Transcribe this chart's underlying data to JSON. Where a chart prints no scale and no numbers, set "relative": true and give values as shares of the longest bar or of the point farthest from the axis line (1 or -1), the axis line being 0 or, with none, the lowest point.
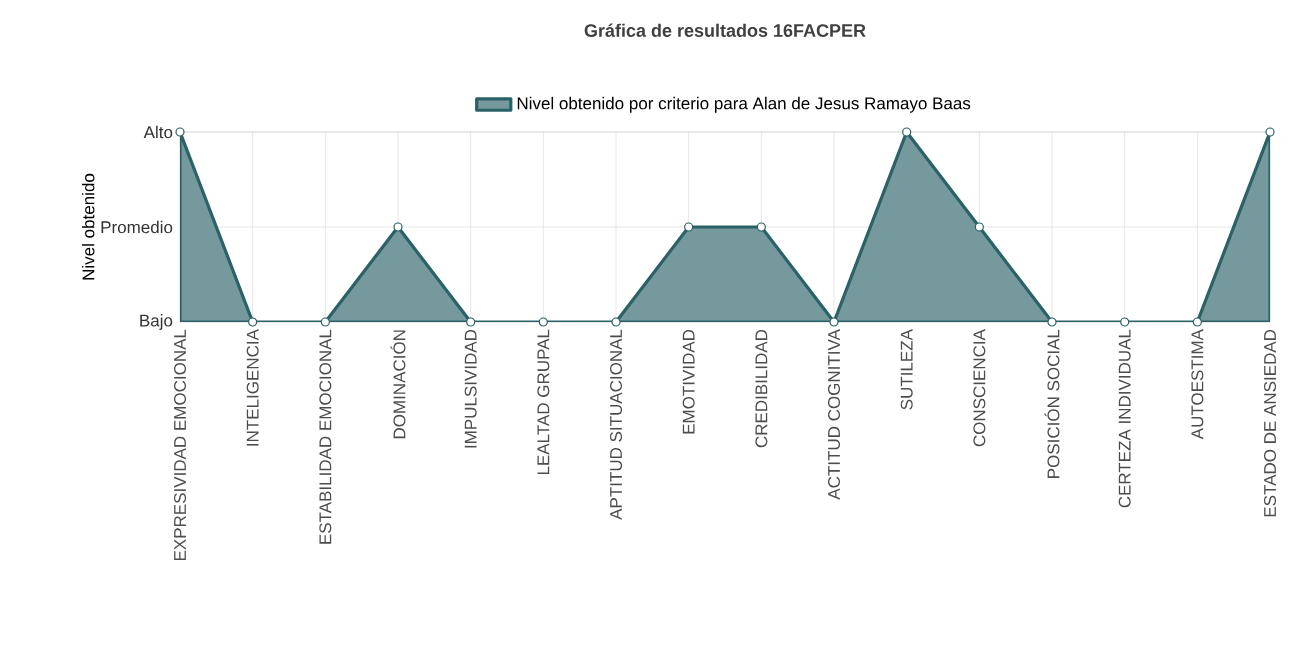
{
  "chart_data": {
    "type": "area",
    "title": "Gráfica de resultados 16FACPER",
    "ylabel": "Nivel obtenido",
    "categories": [
      "EXPRESIVIDAD EMOCIONAL",
      "INTELIGENCIA",
      "ESTABILIDAD EMOCIONAL",
      "DOMINACIÓN",
      "IMPULSIVIDAD",
      "LEALTAD GRUPAL",
      "APTITUD SITUACIONAL",
      "EMOTIVIDAD",
      "CREDIBILIDAD",
      "ACTITUD COGNITIVA",
      "SUTILEZA",
      "CONSCIENCIA",
      "POSICIÓN SOCIAL",
      "CERTEZA INDIVIDUAL",
      "AUTOESTIMA",
      "ESTADO DE ANSIEDAD"
    ],
    "series": [
      {
        "name": "Nivel obtenido por criterio para Alan de Jesus Ramayo Baas",
        "color": "#2b6268",
        "values": [
          1,
          0,
          0,
          0.5,
          0,
          0,
          0,
          0.5,
          0.5,
          0,
          1,
          0.5,
          0,
          0,
          0,
          1
        ]
      }
    ],
    "relative": true,
    "annotations": [
      "Bajo",
      "Promedio",
      "Alto"
    ],
    "grid": true,
    "legend": "top",
    "marker": "circle"
  }
}
